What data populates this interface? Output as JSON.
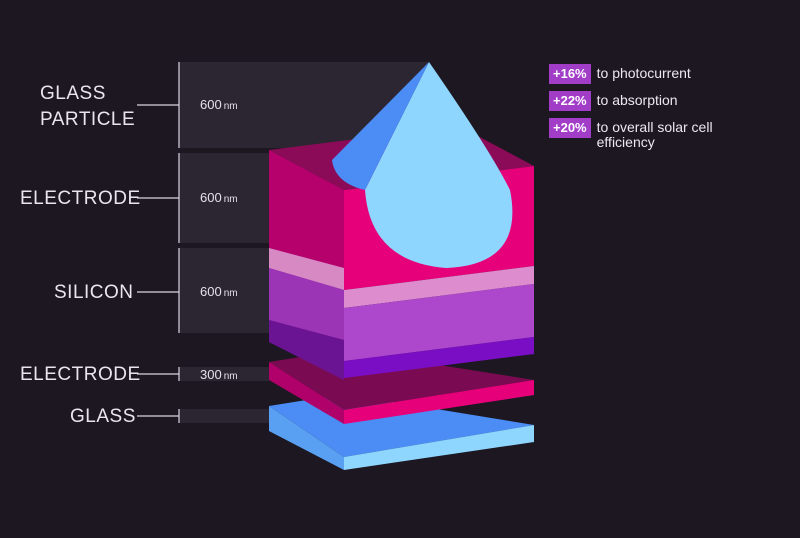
{
  "layers": [
    {
      "name": "GLASS\nPARTICLE",
      "thickness": "600",
      "unit": "nm"
    },
    {
      "name": "ELECTRODE",
      "thickness": "600",
      "unit": "nm"
    },
    {
      "name": "SILICON",
      "thickness": "600",
      "unit": "nm"
    },
    {
      "name": "ELECTRODE",
      "thickness": "300",
      "unit": "nm"
    },
    {
      "name": "GLASS",
      "thickness": "",
      "unit": ""
    }
  ],
  "stats": [
    {
      "value": "+16%",
      "text": "to photocurrent"
    },
    {
      "value": "+22%",
      "text": "to absorption"
    },
    {
      "value": "+20%",
      "text": "to overall solar cell efficiency"
    }
  ],
  "colors": {
    "background": "#1c1720",
    "magenta": "#e6007a",
    "purple": "#a83fc4",
    "glass_blue": "#8fd6ff",
    "accent_blue": "#4b8cf5",
    "badge": "#a23dc8"
  }
}
